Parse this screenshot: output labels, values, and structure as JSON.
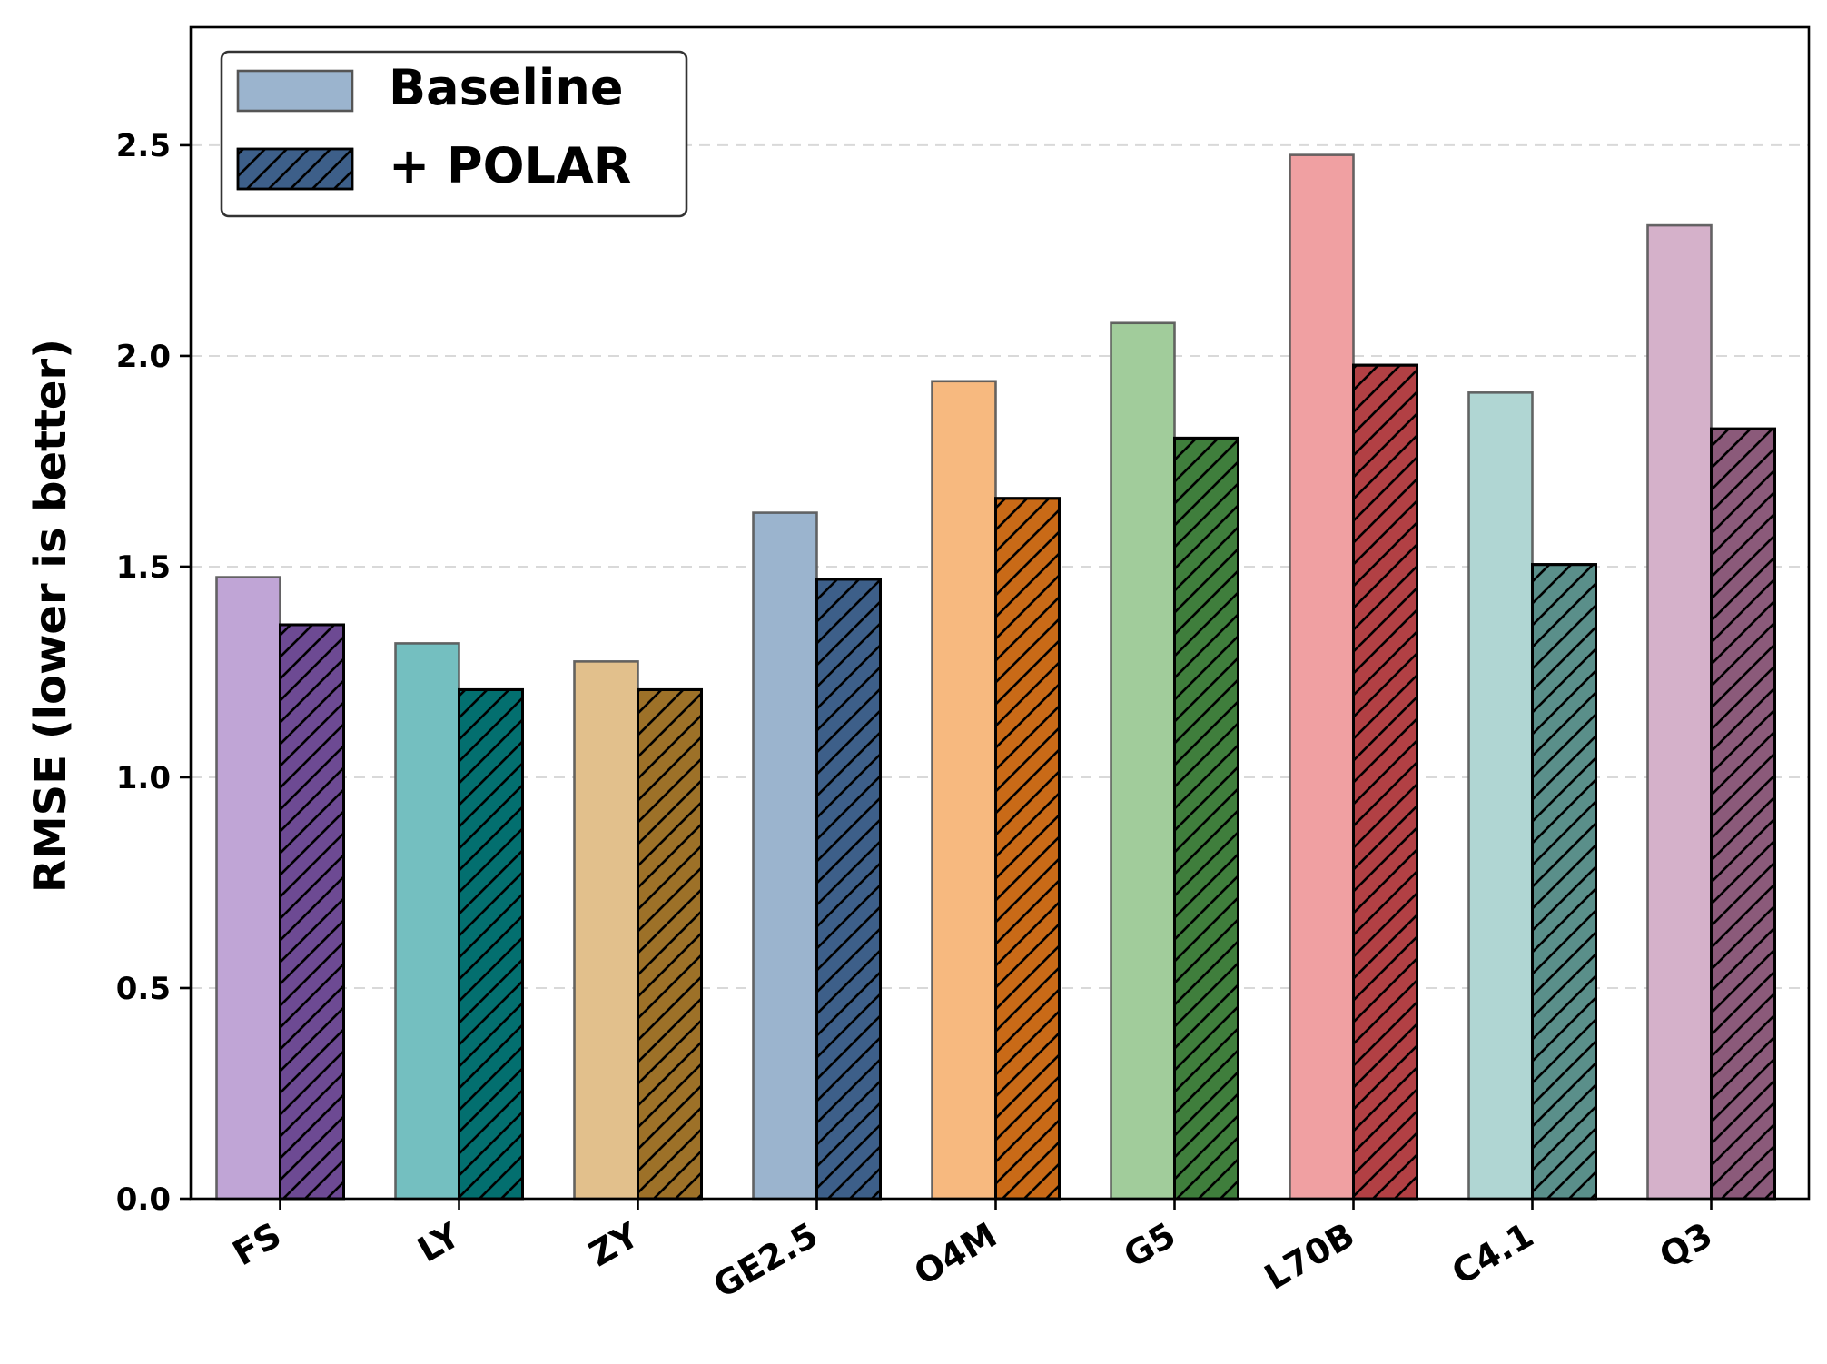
{
  "chart_data": {
    "type": "bar",
    "title": "",
    "xlabel": "",
    "ylabel": "RMSE (lower is better)",
    "ylim": [
      0,
      2.78
    ],
    "yticks": [
      "0.0",
      "0.5",
      "1.0",
      "1.5",
      "2.0",
      "2.5"
    ],
    "ytick_values": [
      0.0,
      0.5,
      1.0,
      1.5,
      2.0,
      2.5
    ],
    "grid": "horizontal dashed",
    "legend_position": "top-left",
    "categories": [
      "FS",
      "LY",
      "ZY",
      "GE2.5",
      "O4M",
      "G5",
      "L70B",
      "C4.1",
      "Q3"
    ],
    "series": [
      {
        "name": "Baseline",
        "style": "solid",
        "values": [
          1.475,
          1.318,
          1.275,
          1.628,
          1.94,
          2.078,
          2.477,
          1.913,
          2.31
        ],
        "colors": [
          "#c0a5d6",
          "#74bfc0",
          "#e2c08c",
          "#9bb4ce",
          "#f7b97f",
          "#a1cc9b",
          "#f0a0a2",
          "#b0d6d3",
          "#d5b1ca"
        ],
        "legend_color": "#9bb4ce"
      },
      {
        "name": "+ POLAR",
        "style": "hatched",
        "values": [
          1.362,
          1.208,
          1.208,
          1.47,
          1.662,
          1.805,
          1.978,
          1.505,
          1.827
        ],
        "colors": [
          "#6d4a93",
          "#036f6f",
          "#9d7128",
          "#3d5f89",
          "#c96a17",
          "#3f7e3c",
          "#b24044",
          "#5a8f8a",
          "#8b5a7a"
        ],
        "legend_color": "#3d5f89"
      }
    ]
  }
}
